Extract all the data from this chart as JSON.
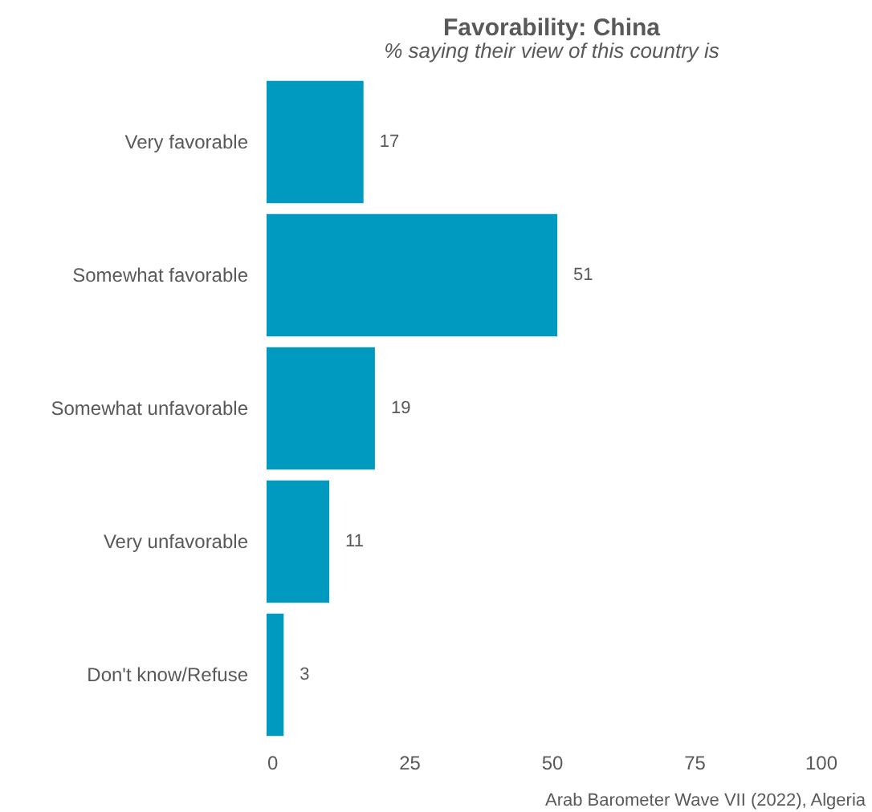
{
  "chart_data": {
    "type": "bar",
    "orientation": "horizontal",
    "title": "Favorability: China",
    "subtitle": "% saying their view of this country is",
    "categories": [
      "Very favorable",
      "Somewhat favorable",
      "Somewhat unfavorable",
      "Very unfavorable",
      "Don't know/Refuse"
    ],
    "values": [
      17,
      51,
      19,
      11,
      3
    ],
    "color": "#0099c0",
    "xlim": [
      0,
      100
    ],
    "xticks": [
      0,
      25,
      50,
      75,
      100
    ],
    "grid": false,
    "data_labels": true,
    "annotations": [
      "Arab Barometer Wave VII (2022), Algeria"
    ]
  }
}
